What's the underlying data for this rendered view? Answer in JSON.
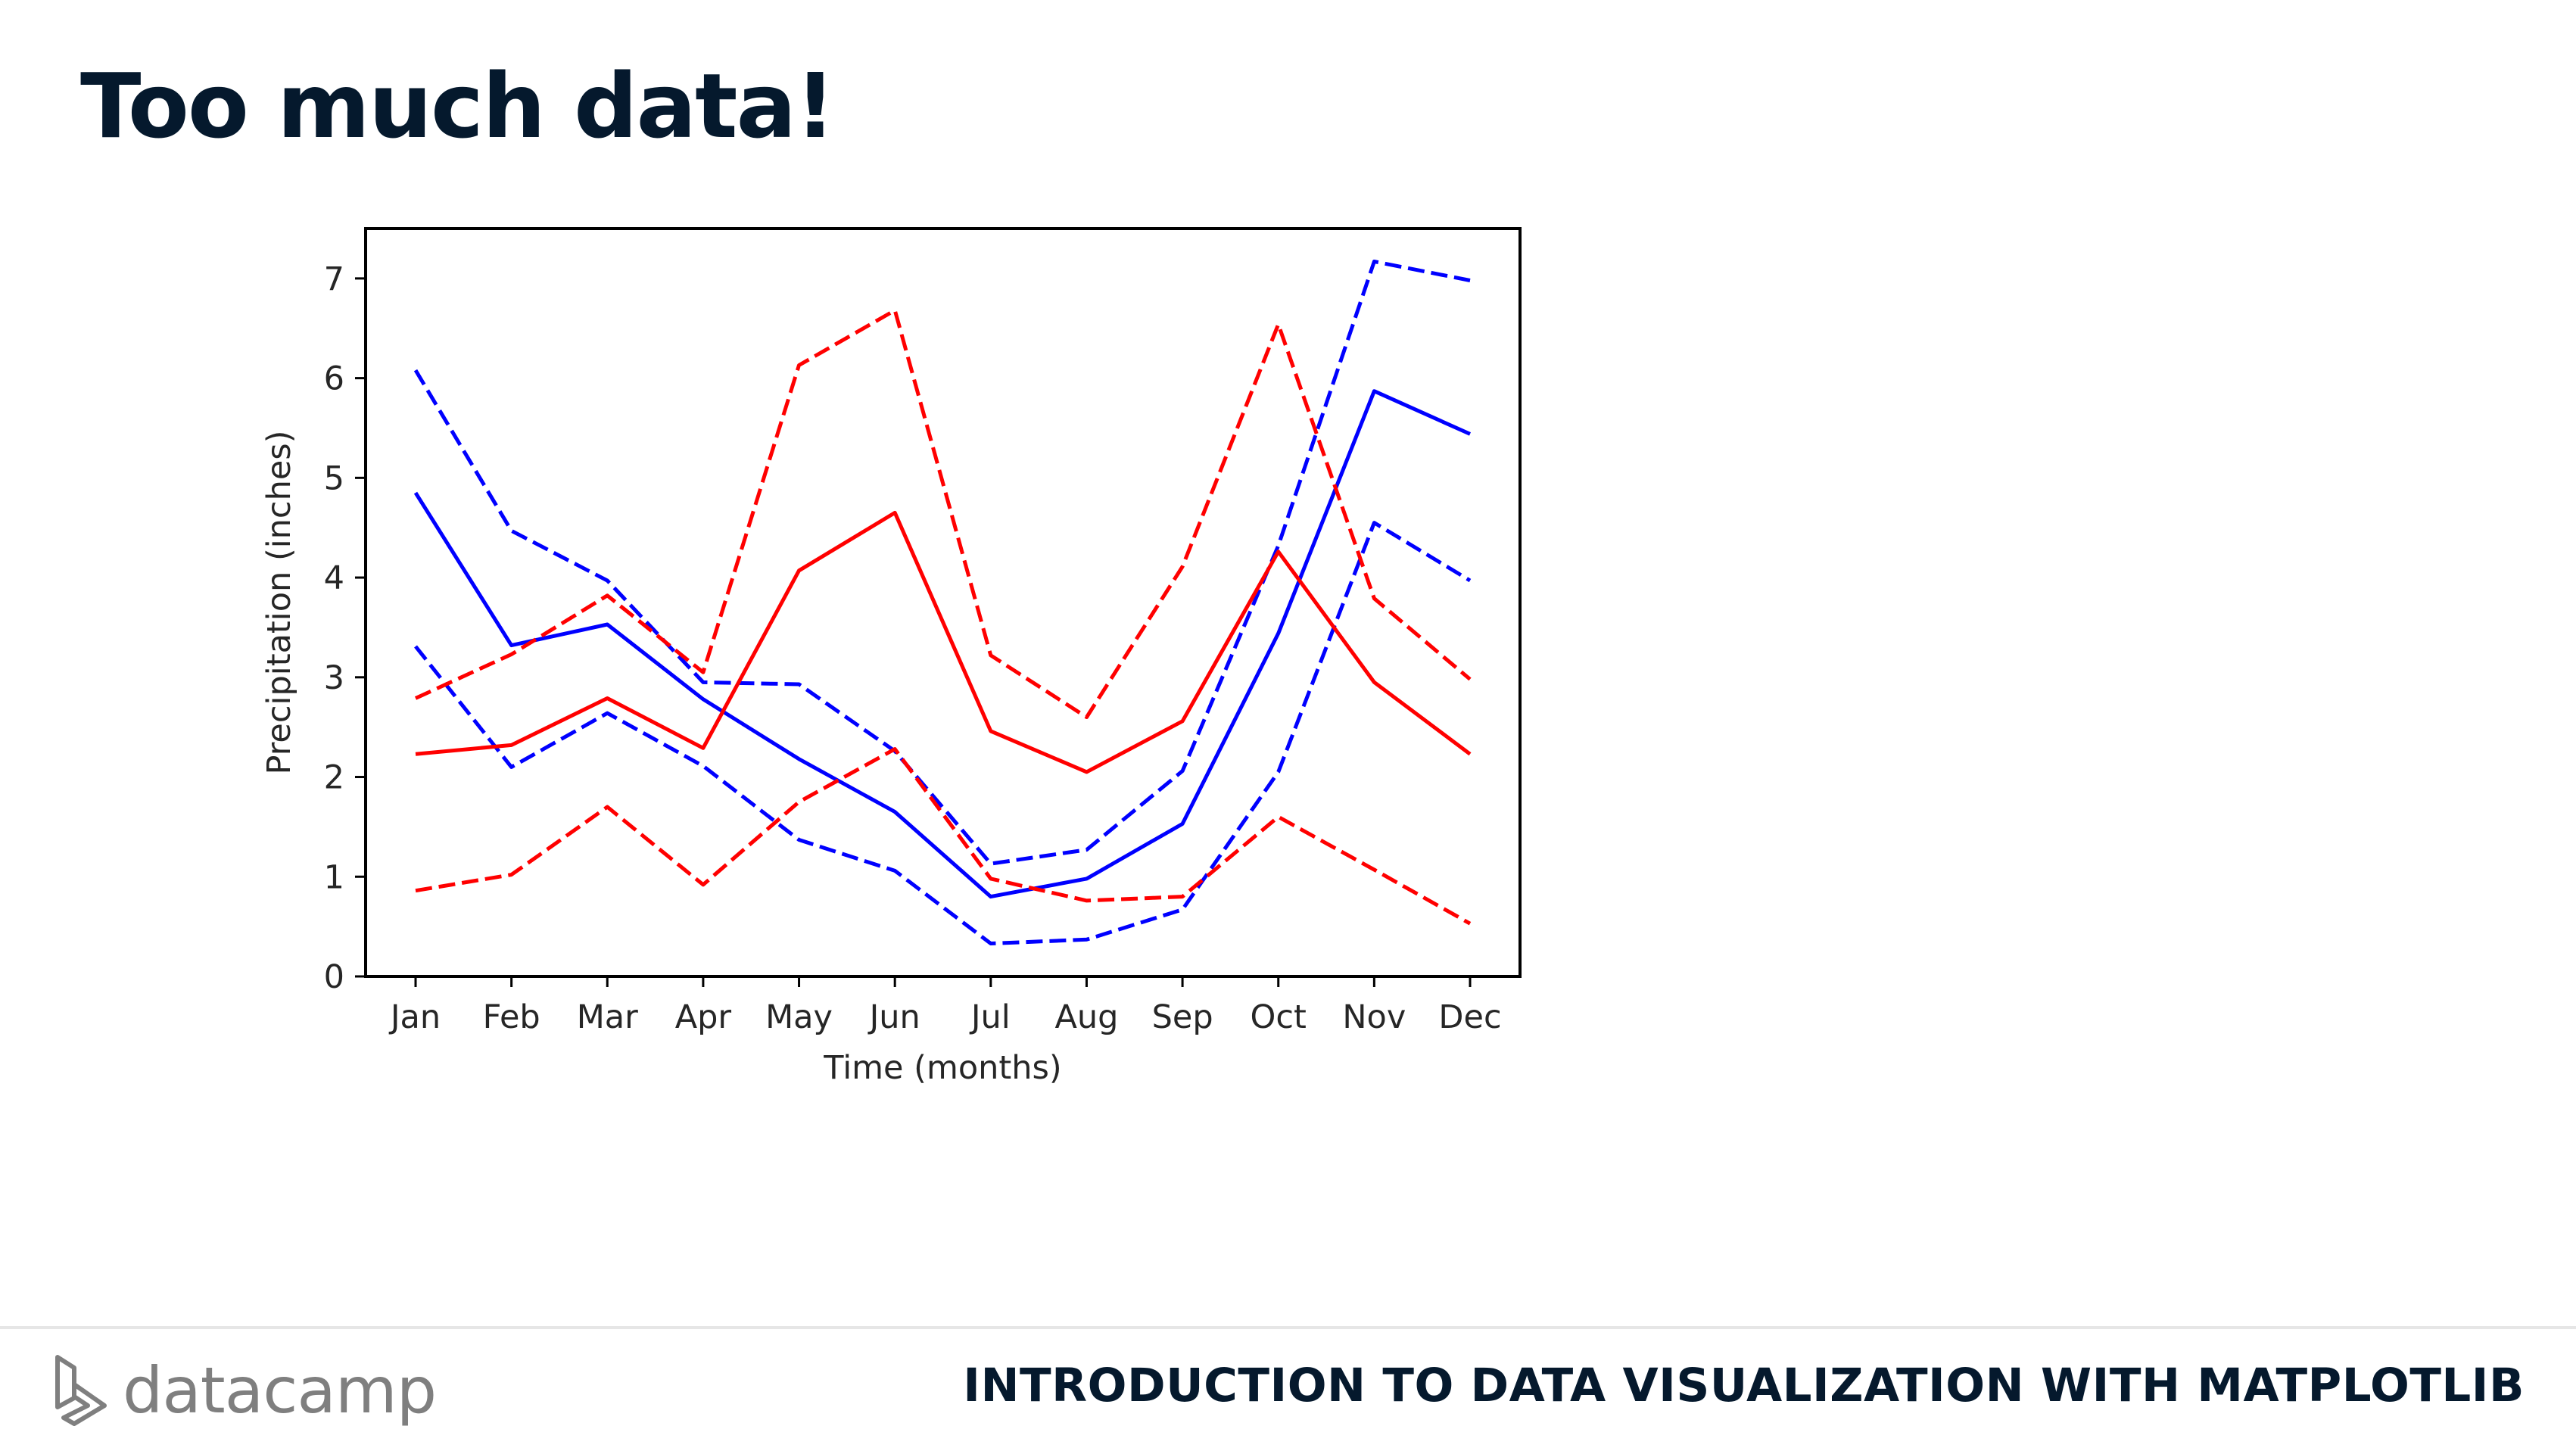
{
  "slide": {
    "title": "Too much data!"
  },
  "footer": {
    "brand": "datacamp",
    "course_title": "INTRODUCTION TO DATA VISUALIZATION WITH MATPLOTLIB"
  },
  "colors": {
    "title": "#05192d",
    "red": "#ff0000",
    "blue": "#0000ff",
    "axes": "#000000",
    "brand_gray": "#7f7f7f"
  },
  "chart_data": {
    "type": "line",
    "categories": [
      "Jan",
      "Feb",
      "Mar",
      "Apr",
      "May",
      "Jun",
      "Jul",
      "Aug",
      "Sep",
      "Oct",
      "Nov",
      "Dec"
    ],
    "xlabel": "Time (months)",
    "ylabel": "Precipitation (inches)",
    "ylim": [
      0,
      7.5
    ],
    "yticks": [
      0,
      1,
      2,
      3,
      4,
      5,
      6,
      7
    ],
    "grid": false,
    "legend": "none",
    "series": [
      {
        "color": "#0000ff",
        "linestyle": "solid",
        "values": [
          4.85,
          3.32,
          3.53,
          2.78,
          2.18,
          1.65,
          0.8,
          0.98,
          1.53,
          3.44,
          5.87,
          5.44
        ]
      },
      {
        "color": "#0000ff",
        "linestyle": "dashed",
        "values": [
          6.08,
          4.47,
          3.97,
          2.95,
          2.93,
          2.26,
          1.13,
          1.27,
          2.06,
          4.32,
          7.17,
          6.98
        ]
      },
      {
        "color": "#0000ff",
        "linestyle": "dashed",
        "values": [
          3.31,
          2.1,
          2.64,
          2.11,
          1.37,
          1.06,
          0.33,
          0.37,
          0.67,
          2.05,
          4.55,
          3.97
        ]
      },
      {
        "color": "#ff0000",
        "linestyle": "solid",
        "values": [
          2.23,
          2.32,
          2.79,
          2.29,
          4.07,
          4.65,
          2.46,
          2.05,
          2.56,
          4.26,
          2.95,
          2.23
        ]
      },
      {
        "color": "#ff0000",
        "linestyle": "dashed",
        "values": [
          2.79,
          3.23,
          3.82,
          3.05,
          6.13,
          6.68,
          3.22,
          2.6,
          4.11,
          6.54,
          3.79,
          2.98
        ]
      },
      {
        "color": "#ff0000",
        "linestyle": "dashed",
        "values": [
          0.86,
          1.02,
          1.7,
          0.92,
          1.75,
          2.28,
          0.98,
          0.76,
          0.8,
          1.6,
          1.07,
          0.53
        ]
      }
    ]
  }
}
